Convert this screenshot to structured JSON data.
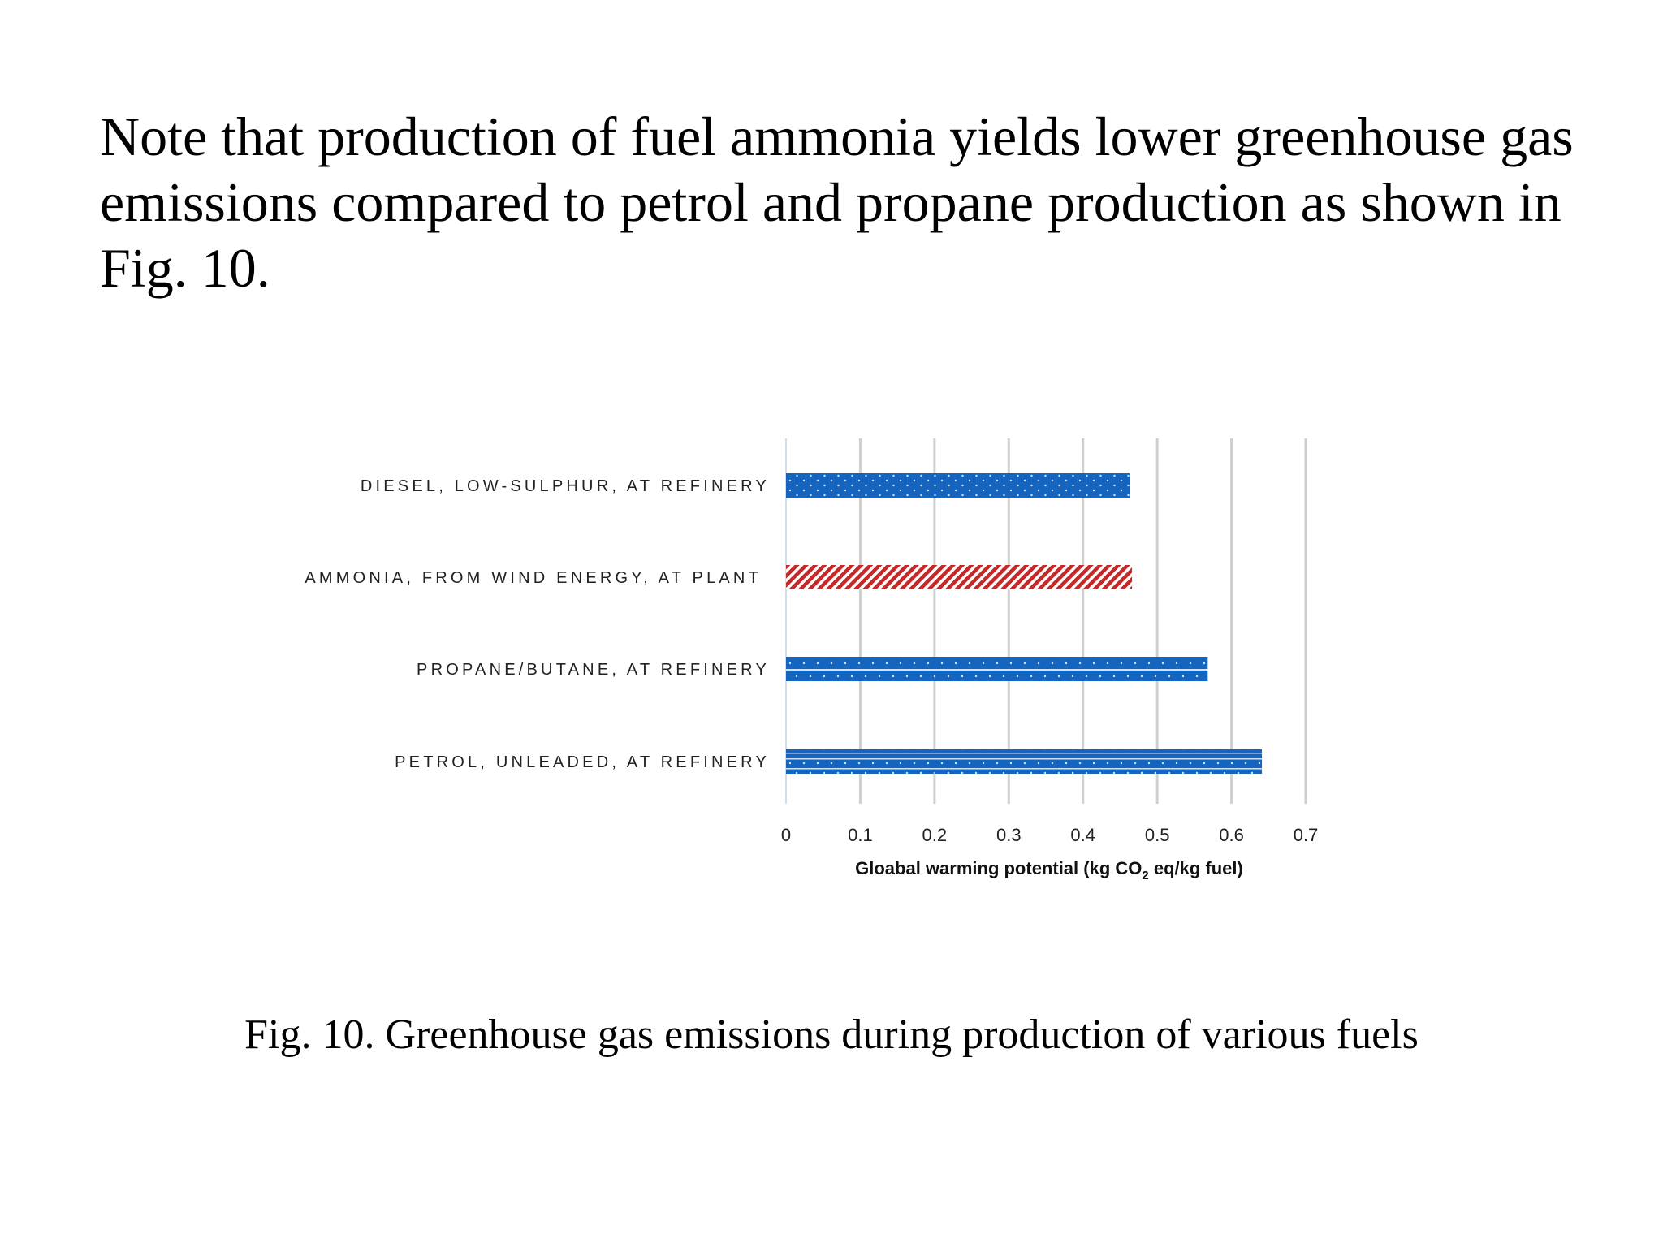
{
  "intro_text": "Note that production of fuel ammonia yields lower greenhouse gas emissions compared to petrol and propane production as shown in Fig. 10.",
  "caption": "Fig. 10. Greenhouse gas emissions during production of various fuels",
  "chart_data": {
    "type": "bar",
    "orientation": "horizontal",
    "categories": [
      "DIESEL, LOW-SULPHUR, AT REFINERY",
      "AMMONIA, FROM WIND ENERGY, AT PLANT",
      "PROPANE/BUTANE, AT REFINERY",
      "PETROL, UNLEADED, AT REFINERY"
    ],
    "values": [
      0.463,
      0.466,
      0.568,
      0.641
    ],
    "bar_styles": [
      "dotted",
      "hatched",
      "dotted-line",
      "dotted-double-line"
    ],
    "bar_colors": [
      "#1565c0",
      "#c62828",
      "#1565c0",
      "#1565c0"
    ],
    "xlabel": {
      "prefix": "Gloabal warming potential (kg CO",
      "subscript": "2",
      "suffix": " eq/kg fuel)"
    },
    "xticks": [
      "0",
      "0.1",
      "0.2",
      "0.3",
      "0.4",
      "0.5",
      "0.6",
      "0.7"
    ],
    "xlim": [
      0,
      0.7
    ],
    "grid": true
  }
}
